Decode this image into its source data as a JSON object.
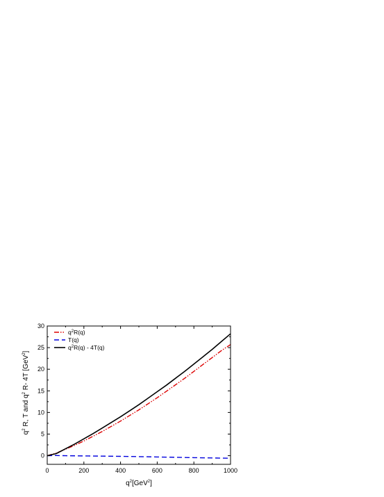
{
  "chart_data": {
    "type": "line",
    "title": "",
    "xlabel": {
      "base": "q",
      "sup": "2",
      "rest": "[GeV",
      "sup2": "2",
      "end": "]"
    },
    "ylabel": {
      "p1": "q",
      "s1": "2",
      "p2": " R, T and q",
      "s2": "2",
      "p3": " R- 4T [GeV",
      "s3": "2",
      "p4": "]"
    },
    "xlim": [
      0,
      1000
    ],
    "ylim": [
      -2,
      30
    ],
    "xticks": [
      "0",
      "200",
      "400",
      "600",
      "800",
      "1000"
    ],
    "yticks": [
      "0",
      "5",
      "10",
      "15",
      "20",
      "25",
      "30"
    ],
    "grid": false,
    "legend_position": "top-left",
    "series": [
      {
        "name": {
          "pre": "q",
          "sup": "2",
          "post": "R(q)"
        },
        "color": "#dd0000",
        "style": "dash-dot-dot",
        "x": [
          0,
          50,
          100,
          150,
          200,
          250,
          300,
          350,
          400,
          450,
          500,
          550,
          600,
          650,
          700,
          750,
          800,
          850,
          900,
          950,
          1000
        ],
        "y": [
          0,
          0.6,
          1.5,
          2.4,
          3.4,
          4.5,
          5.6,
          6.8,
          8.0,
          9.3,
          10.6,
          12.0,
          13.4,
          14.9,
          16.4,
          17.9,
          19.5,
          21.1,
          22.7,
          24.3,
          25.7
        ]
      },
      {
        "name": {
          "pre": "T(q)",
          "sup": "",
          "post": ""
        },
        "color": "#0000dd",
        "style": "dash",
        "x": [
          0,
          50,
          100,
          200,
          300,
          400,
          500,
          600,
          700,
          800,
          900,
          1000
        ],
        "y": [
          0,
          0.05,
          0.0,
          -0.05,
          -0.1,
          -0.15,
          -0.22,
          -0.3,
          -0.38,
          -0.45,
          -0.52,
          -0.6
        ]
      },
      {
        "name": {
          "pre": "q",
          "sup": "2",
          "post": "R(q) - 4T(q)"
        },
        "color": "#000000",
        "style": "solid",
        "x": [
          0,
          50,
          100,
          150,
          200,
          250,
          300,
          350,
          400,
          450,
          500,
          550,
          600,
          650,
          700,
          750,
          800,
          850,
          900,
          950,
          1000
        ],
        "y": [
          0,
          0.5,
          1.6,
          2.7,
          3.9,
          5.1,
          6.4,
          7.7,
          9.0,
          10.4,
          11.8,
          13.3,
          14.8,
          16.3,
          17.9,
          19.5,
          21.2,
          22.9,
          24.6,
          26.4,
          28.2
        ]
      }
    ]
  }
}
